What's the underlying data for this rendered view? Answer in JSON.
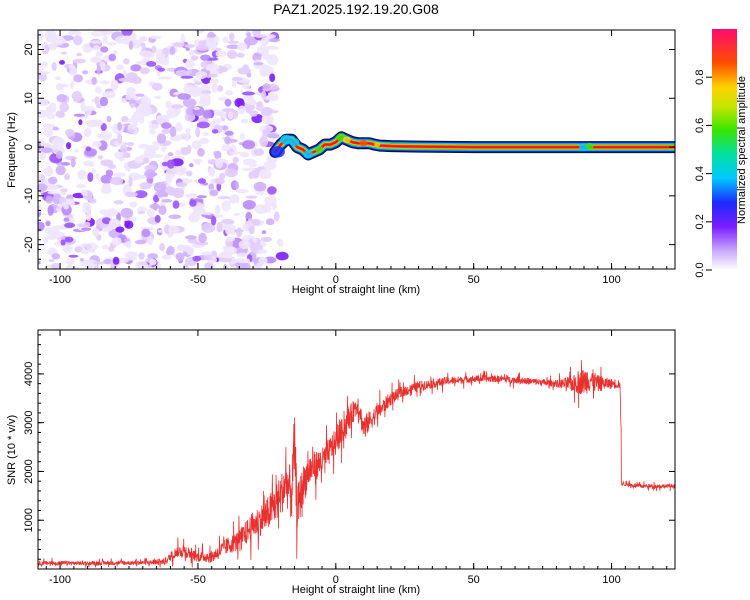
{
  "title": "PAZ1.2025.192.19.20.G08",
  "chart_data": [
    {
      "type": "heatmap",
      "xlabel": "Height of straight line (km)",
      "ylabel": "Frequency (Hz)",
      "xlim": [
        -108,
        123
      ],
      "ylim": [
        -25,
        24
      ],
      "xticks": [
        -100,
        -50,
        0,
        50,
        100
      ],
      "yticks": [
        -20,
        -10,
        0,
        10,
        20
      ],
      "colorbar": {
        "label": "Normalized spectral amplitude",
        "range": [
          0,
          1
        ],
        "ticks": [
          0.0,
          0.2,
          0.4,
          0.6,
          0.8
        ],
        "tick_labels": [
          "0.0",
          "0.2",
          "0.4",
          "0.6",
          "0.8"
        ]
      },
      "noise_region": {
        "x_range": [
          -108,
          -22
        ],
        "freq_range": [
          -25,
          24
        ]
      },
      "signal_ridge": {
        "x": [
          -22,
          -20,
          -18,
          -16,
          -14,
          -12,
          -10,
          -8,
          -6,
          -4,
          -2,
          0,
          2,
          4,
          6,
          8,
          10,
          12,
          14,
          16,
          20,
          30,
          50,
          70,
          90,
          104
        ],
        "freq": [
          -1.0,
          0.5,
          1.5,
          1.5,
          0.0,
          -0.5,
          -1.5,
          -1.0,
          -0.5,
          0.5,
          0.5,
          1.0,
          2.0,
          1.5,
          1.0,
          0.8,
          0.8,
          0.8,
          0.5,
          0.3,
          0.2,
          0.1,
          0.0,
          0.0,
          0.0,
          0.0
        ]
      },
      "band_extent": [
        -22,
        123
      ]
    },
    {
      "type": "line",
      "xlabel": "Height of straight line (km)",
      "ylabel": "SNR (10 * v/v)",
      "xlim": [
        -108,
        123
      ],
      "ylim": [
        0,
        4900
      ],
      "xticks": [
        -100,
        -50,
        0,
        50,
        100
      ],
      "yticks": [
        1000,
        2000,
        3000,
        4000
      ],
      "series": [
        {
          "color": "#e8312f",
          "x": [
            -108,
            -90,
            -70,
            -62,
            -58,
            -55,
            -50,
            -45,
            -40,
            -35,
            -30,
            -25,
            -20,
            -18,
            -16,
            -15,
            -14,
            -12,
            -10,
            -8,
            -5,
            0,
            5,
            8,
            10,
            15,
            20,
            25,
            30,
            40,
            50,
            60,
            70,
            80,
            88,
            90,
            92,
            95,
            100,
            103,
            104,
            110,
            123
          ],
          "mean": [
            120,
            120,
            130,
            150,
            350,
            380,
            250,
            250,
            450,
            600,
            900,
            1100,
            1500,
            1800,
            1500,
            2600,
            1200,
            1700,
            2000,
            2100,
            2200,
            2600,
            3100,
            3400,
            2900,
            3200,
            3500,
            3650,
            3750,
            3850,
            3900,
            3900,
            3850,
            3800,
            3800,
            3850,
            3900,
            3800,
            3800,
            3800,
            1750,
            1700,
            1700
          ],
          "noise": [
            60,
            60,
            60,
            100,
            150,
            200,
            150,
            180,
            250,
            300,
            400,
            500,
            600,
            700,
            800,
            900,
            700,
            600,
            500,
            450,
            400,
            400,
            350,
            300,
            350,
            250,
            200,
            150,
            150,
            120,
            100,
            100,
            100,
            100,
            300,
            400,
            400,
            250,
            150,
            150,
            60,
            60,
            60
          ]
        }
      ]
    }
  ]
}
